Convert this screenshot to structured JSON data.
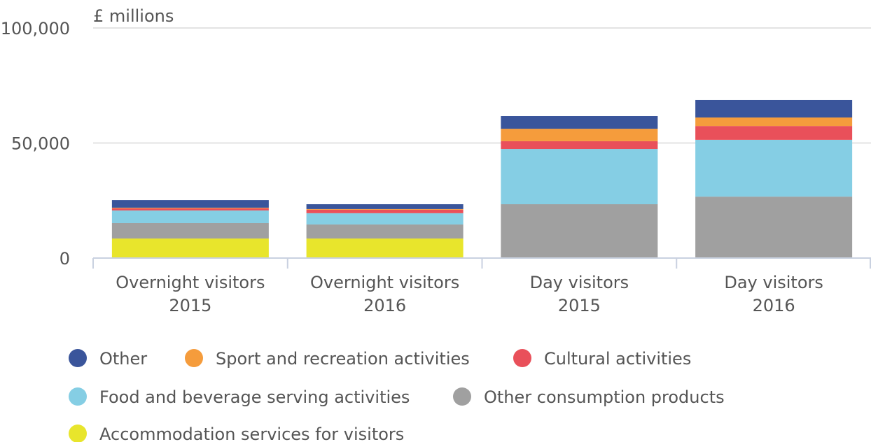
{
  "chart_data": {
    "type": "stacked_bar",
    "axis_label": "£ millions",
    "categories": [
      [
        "Overnight visitors",
        "2015"
      ],
      [
        "Overnight visitors",
        "2016"
      ],
      [
        "Day visitors",
        "2015"
      ],
      [
        "Day visitors",
        "2016"
      ]
    ],
    "series": [
      {
        "name": "Other",
        "color": "#3a559b",
        "values": [
          3300,
          2100,
          5500,
          7600
        ]
      },
      {
        "name": "Sport and recreation activities",
        "color": "#f59c3c",
        "values": [
          300,
          300,
          5400,
          3700
        ]
      },
      {
        "name": "Cultural activities",
        "color": "#e9505a",
        "values": [
          900,
          1500,
          3400,
          6000
        ]
      },
      {
        "name": "Food and beverage serving activities",
        "color": "#85cee4",
        "values": [
          5500,
          4900,
          24000,
          24700
        ]
      },
      {
        "name": "Other consumption products",
        "color": "#a0a0a0",
        "values": [
          6700,
          6100,
          23400,
          26700
        ]
      },
      {
        "name": "Accommodation services for visitors",
        "color": "#e8e52c",
        "values": [
          8500,
          8500,
          0,
          0
        ]
      }
    ],
    "ylim": [
      0,
      100000
    ],
    "yticks": [
      0,
      {
        "value": 50000,
        "label": "50,000"
      },
      {
        "value": 100000,
        "label": "100,000"
      }
    ],
    "grid": true
  }
}
